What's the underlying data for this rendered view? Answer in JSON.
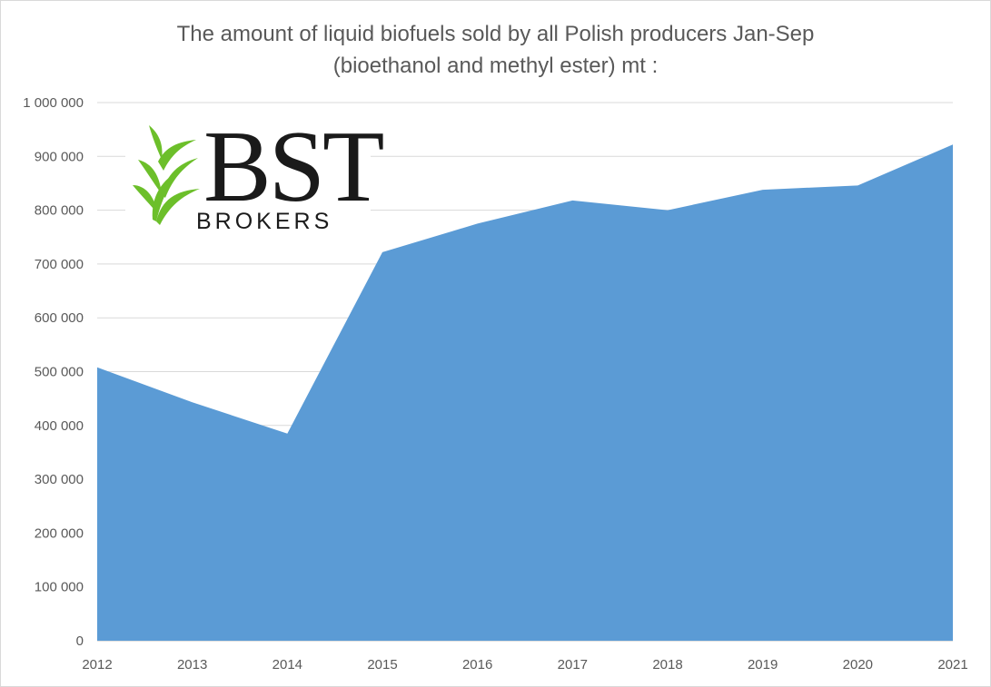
{
  "chart_data": {
    "type": "area",
    "title": "The amount of liquid biofuels sold by all Polish producers Jan-Sep",
    "subtitle": "(bioethanol and methyl ester) mt :",
    "x": [
      "2012",
      "2013",
      "2014",
      "2015",
      "2016",
      "2017",
      "2018",
      "2019",
      "2020",
      "2021"
    ],
    "values": [
      508000,
      443000,
      385000,
      722000,
      775000,
      818000,
      800000,
      838000,
      846000,
      922000
    ],
    "ylim": [
      0,
      1000000
    ],
    "yticks": [
      0,
      100000,
      200000,
      300000,
      400000,
      500000,
      600000,
      700000,
      800000,
      900000,
      1000000
    ],
    "ytick_labels": [
      "0",
      "100 000",
      "200 000",
      "300 000",
      "400 000",
      "500 000",
      "600 000",
      "700 000",
      "800 000",
      "900 000",
      "1 000 000"
    ],
    "grid": true,
    "fill_color": "#5b9bd5",
    "grid_color": "#d9d9d9",
    "text_color": "#595959"
  },
  "logo": {
    "word": "BST",
    "sub": "BROKERS",
    "leaf_color": "#6cbf2a"
  }
}
